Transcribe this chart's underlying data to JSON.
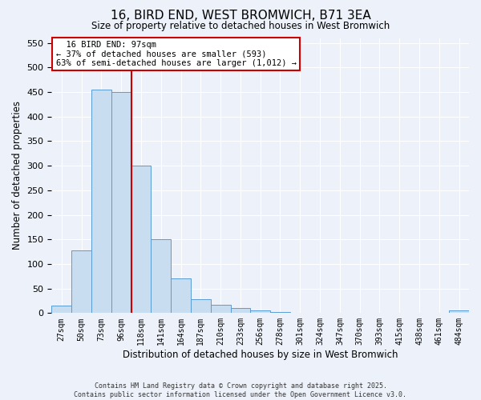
{
  "title": "16, BIRD END, WEST BROMWICH, B71 3EA",
  "subtitle": "Size of property relative to detached houses in West Bromwich",
  "xlabel": "Distribution of detached houses by size in West Bromwich",
  "ylabel": "Number of detached properties",
  "bin_labels": [
    "27sqm",
    "50sqm",
    "73sqm",
    "96sqm",
    "118sqm",
    "141sqm",
    "164sqm",
    "187sqm",
    "210sqm",
    "233sqm",
    "256sqm",
    "278sqm",
    "301sqm",
    "324sqm",
    "347sqm",
    "370sqm",
    "393sqm",
    "415sqm",
    "438sqm",
    "461sqm",
    "484sqm"
  ],
  "bin_values": [
    15,
    128,
    455,
    450,
    300,
    150,
    70,
    28,
    17,
    10,
    5,
    2,
    1,
    0,
    0,
    0,
    0,
    0,
    0,
    0,
    5
  ],
  "bar_color": "#c9ddf0",
  "bar_edge_color": "#5b9bd5",
  "vline_pos": 3.5,
  "vline_color": "#cc0000",
  "annotation_title": "16 BIRD END: 97sqm",
  "annotation_line1": "← 37% of detached houses are smaller (593)",
  "annotation_line2": "63% of semi-detached houses are larger (1,012) →",
  "annotation_box_color": "#ffffff",
  "annotation_box_edge_color": "#cc0000",
  "ylim": [
    0,
    560
  ],
  "yticks": [
    0,
    50,
    100,
    150,
    200,
    250,
    300,
    350,
    400,
    450,
    500,
    550
  ],
  "footer1": "Contains HM Land Registry data © Crown copyright and database right 2025.",
  "footer2": "Contains public sector information licensed under the Open Government Licence v3.0.",
  "bg_color": "#edf2fa"
}
